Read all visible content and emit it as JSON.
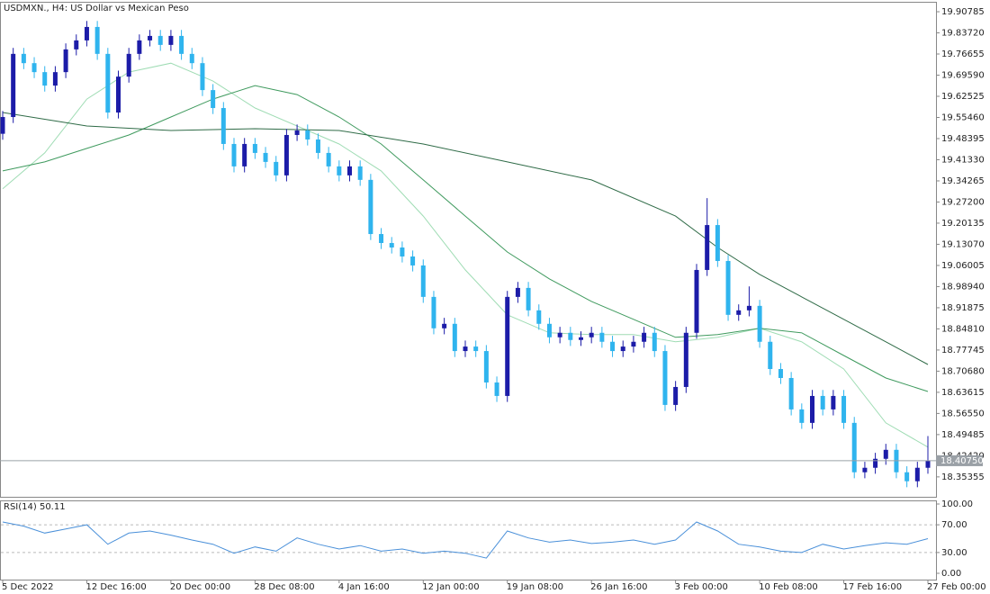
{
  "chart_data": [
    {
      "type": "candlestick",
      "title": "USDMXN., H4:  US Dollar vs Mexican Peso",
      "categories": [
        "5 Dec 2022",
        null,
        null,
        null,
        null,
        null,
        null,
        null,
        "12 Dec 16:00",
        null,
        null,
        null,
        null,
        null,
        null,
        null,
        "20 Dec 00:00",
        null,
        null,
        null,
        null,
        null,
        null,
        null,
        "28 Dec 08:00",
        null,
        null,
        null,
        null,
        null,
        null,
        null,
        "4 Jan 16:00",
        null,
        null,
        null,
        null,
        null,
        null,
        null,
        "12 Jan 00:00",
        null,
        null,
        null,
        null,
        null,
        null,
        null,
        "19 Jan 08:00",
        null,
        null,
        null,
        null,
        null,
        null,
        null,
        "26 Jan 16:00",
        null,
        null,
        null,
        null,
        null,
        null,
        null,
        "3 Feb 00:00",
        null,
        null,
        null,
        null,
        null,
        null,
        null,
        "10 Feb 08:00",
        null,
        null,
        null,
        null,
        null,
        null,
        null,
        "17 Feb 16:00",
        null,
        null,
        null,
        null,
        null,
        null,
        null,
        "27 Feb 00:00"
      ],
      "open": [
        19.5,
        19.556,
        19.767,
        19.736,
        19.706,
        19.661,
        19.706,
        19.782,
        19.812,
        19.857,
        19.767,
        19.571,
        19.691,
        19.767,
        19.812,
        19.827,
        19.797,
        19.827,
        19.767,
        19.736,
        19.646,
        19.586,
        19.466,
        19.391,
        19.466,
        19.436,
        19.406,
        19.361,
        19.496,
        19.511,
        19.481,
        19.436,
        19.391,
        19.361,
        19.391,
        19.346,
        19.165,
        19.135,
        19.12,
        19.09,
        19.06,
        18.955,
        18.85,
        18.865,
        18.774,
        18.789,
        18.774,
        18.669,
        18.624,
        18.955,
        18.985,
        18.91,
        18.865,
        18.82,
        18.835,
        18.811,
        18.82,
        18.835,
        18.805,
        18.774,
        18.789,
        18.805,
        18.835,
        18.774,
        18.594,
        18.654,
        18.835,
        19.045,
        19.195,
        19.075,
        18.895,
        18.91,
        18.925,
        18.805,
        18.714,
        18.684,
        18.579,
        18.534,
        18.624,
        18.579,
        18.624,
        18.534,
        18.369,
        18.384,
        18.414,
        18.444,
        18.369,
        18.339,
        18.384
      ],
      "high": [
        19.576,
        19.787,
        19.787,
        19.756,
        19.726,
        19.726,
        19.802,
        19.832,
        19.877,
        19.877,
        19.787,
        19.711,
        19.787,
        19.832,
        19.847,
        19.847,
        19.847,
        19.847,
        19.787,
        19.756,
        19.666,
        19.606,
        19.486,
        19.486,
        19.486,
        19.456,
        19.426,
        19.516,
        19.531,
        19.531,
        19.501,
        19.456,
        19.411,
        19.411,
        19.411,
        19.366,
        19.185,
        19.155,
        19.14,
        19.11,
        19.08,
        18.975,
        18.885,
        18.885,
        18.809,
        18.809,
        18.794,
        18.689,
        18.975,
        19.005,
        19.005,
        18.93,
        18.885,
        18.855,
        18.855,
        18.84,
        18.855,
        18.855,
        18.825,
        18.809,
        18.825,
        18.855,
        18.855,
        18.794,
        18.674,
        18.855,
        19.065,
        19.285,
        19.215,
        19.095,
        18.93,
        18.99,
        18.945,
        18.825,
        18.734,
        18.704,
        18.599,
        18.644,
        18.644,
        18.644,
        18.644,
        18.554,
        18.404,
        18.434,
        18.464,
        18.464,
        18.389,
        18.404,
        18.49
      ],
      "low": [
        19.48,
        19.536,
        19.716,
        19.686,
        19.641,
        19.641,
        19.686,
        19.762,
        19.792,
        19.747,
        19.551,
        19.551,
        19.671,
        19.747,
        19.792,
        19.777,
        19.777,
        19.747,
        19.716,
        19.626,
        19.566,
        19.446,
        19.371,
        19.371,
        19.416,
        19.386,
        19.341,
        19.341,
        19.476,
        19.461,
        19.416,
        19.371,
        19.341,
        19.341,
        19.326,
        19.145,
        19.115,
        19.1,
        19.07,
        19.04,
        18.935,
        18.83,
        18.83,
        18.754,
        18.754,
        18.754,
        18.649,
        18.604,
        18.604,
        18.935,
        18.89,
        18.845,
        18.8,
        18.8,
        18.791,
        18.791,
        18.8,
        18.785,
        18.754,
        18.754,
        18.769,
        18.785,
        18.754,
        18.574,
        18.574,
        18.634,
        18.815,
        19.025,
        19.055,
        18.875,
        18.875,
        18.89,
        18.785,
        18.694,
        18.664,
        18.559,
        18.514,
        18.514,
        18.559,
        18.559,
        18.514,
        18.349,
        18.349,
        18.364,
        18.394,
        18.349,
        18.319,
        18.319,
        18.364
      ],
      "close": [
        19.556,
        19.767,
        19.736,
        19.706,
        19.661,
        19.706,
        19.782,
        19.812,
        19.857,
        19.767,
        19.571,
        19.691,
        19.767,
        19.812,
        19.827,
        19.797,
        19.827,
        19.767,
        19.736,
        19.646,
        19.586,
        19.466,
        19.391,
        19.466,
        19.436,
        19.406,
        19.361,
        19.496,
        19.511,
        19.481,
        19.436,
        19.391,
        19.361,
        19.391,
        19.346,
        19.165,
        19.135,
        19.12,
        19.09,
        19.06,
        18.955,
        18.85,
        18.865,
        18.774,
        18.789,
        18.774,
        18.669,
        18.624,
        18.955,
        18.985,
        18.91,
        18.865,
        18.82,
        18.835,
        18.811,
        18.82,
        18.835,
        18.805,
        18.774,
        18.789,
        18.805,
        18.835,
        18.774,
        18.594,
        18.654,
        18.835,
        19.045,
        19.195,
        19.075,
        18.895,
        18.91,
        18.925,
        18.805,
        18.714,
        18.684,
        18.579,
        18.534,
        18.624,
        18.579,
        18.624,
        18.534,
        18.369,
        18.384,
        18.414,
        18.444,
        18.369,
        18.339,
        18.384,
        18.408
      ],
      "up_color": "#1c1ca8",
      "down_color": "#2fb4ee",
      "ylim": [
        18.287,
        19.941
      ],
      "yticks": [
        19.90785,
        {
          "value": 19.8372,
          "label": "19.83720"
        },
        19.76655,
        {
          "value": 19.6959,
          "label": "19.69590"
        },
        19.62525,
        {
          "value": 19.5546,
          "label": "19.55460"
        },
        19.48395,
        {
          "value": 19.4133,
          "label": "19.41330"
        },
        19.34265,
        {
          "value": 19.272,
          "label": "19.27200"
        },
        19.20135,
        {
          "value": 19.1307,
          "label": "19.13070"
        },
        19.06005,
        {
          "value": 18.9894,
          "label": "18.98940"
        },
        18.91875,
        {
          "value": 18.8481,
          "label": "18.84810"
        },
        18.77745,
        {
          "value": 18.7068,
          "label": "18.70680"
        },
        18.63615,
        {
          "value": 18.5655,
          "label": "18.56550"
        },
        18.49485,
        {
          "value": 18.4242,
          "label": "18.42420"
        },
        18.35355
      ],
      "current_price": {
        "value": 18.4075,
        "label": "18.40750"
      },
      "lines": [
        {
          "color": "#9fdcb4",
          "x": [
            0,
            4,
            8,
            12,
            16,
            20,
            24,
            28,
            32,
            36,
            40,
            44,
            48,
            52,
            56,
            60,
            64,
            68,
            72,
            76,
            80,
            84,
            88
          ],
          "values": [
            19.316,
            19.436,
            19.616,
            19.706,
            19.736,
            19.676,
            19.586,
            19.526,
            19.466,
            19.376,
            19.225,
            19.045,
            18.895,
            18.835,
            18.829,
            18.829,
            18.805,
            18.82,
            18.85,
            18.805,
            18.714,
            18.534,
            18.453
          ]
        },
        {
          "color": "#3f9a5e",
          "x": [
            0,
            4,
            8,
            12,
            16,
            20,
            24,
            28,
            32,
            36,
            40,
            44,
            48,
            52,
            56,
            60,
            64,
            68,
            72,
            76,
            80,
            84,
            88
          ],
          "values": [
            19.376,
            19.406,
            19.451,
            19.496,
            19.556,
            19.616,
            19.661,
            19.631,
            19.556,
            19.466,
            19.346,
            19.225,
            19.105,
            19.015,
            18.94,
            18.88,
            18.82,
            18.829,
            18.85,
            18.835,
            18.759,
            18.684,
            18.639
          ]
        },
        {
          "color": "#2f6b47",
          "x": [
            0,
            8,
            16,
            24,
            32,
            40,
            48,
            56,
            64,
            68,
            72,
            76,
            80,
            84,
            88
          ],
          "values": [
            19.571,
            19.526,
            19.511,
            19.517,
            19.511,
            19.466,
            19.406,
            19.346,
            19.225,
            19.12,
            19.03,
            18.955,
            18.88,
            18.805,
            18.729
          ]
        }
      ]
    },
    {
      "type": "line",
      "title": "RSI(14) 50.11",
      "color": "#4a90d9",
      "x": [
        0,
        2,
        4,
        6,
        8,
        10,
        12,
        14,
        16,
        18,
        20,
        22,
        24,
        26,
        28,
        30,
        32,
        34,
        36,
        38,
        40,
        42,
        44,
        46,
        48,
        50,
        52,
        54,
        56,
        58,
        60,
        62,
        64,
        66,
        68,
        70,
        72,
        74,
        76,
        78,
        80,
        82,
        84,
        86,
        88
      ],
      "values": [
        74,
        68,
        58,
        64,
        70,
        42,
        58,
        61,
        55,
        48,
        42,
        29,
        38,
        32,
        51,
        42,
        35,
        40,
        32,
        35,
        29,
        32,
        29,
        22,
        61,
        51,
        45,
        48,
        43,
        45,
        48,
        42,
        48,
        74,
        61,
        42,
        38,
        32,
        30,
        42,
        35,
        40,
        44,
        42,
        50
      ],
      "ylim": [
        0,
        100
      ],
      "yticks": [
        {
          "value": 100,
          "label": "100.00"
        },
        {
          "value": 70,
          "label": "70.00"
        },
        {
          "value": 30,
          "label": "30.00"
        },
        {
          "value": 0,
          "label": "0.00"
        }
      ],
      "dashed_levels": [
        70,
        30
      ]
    }
  ]
}
